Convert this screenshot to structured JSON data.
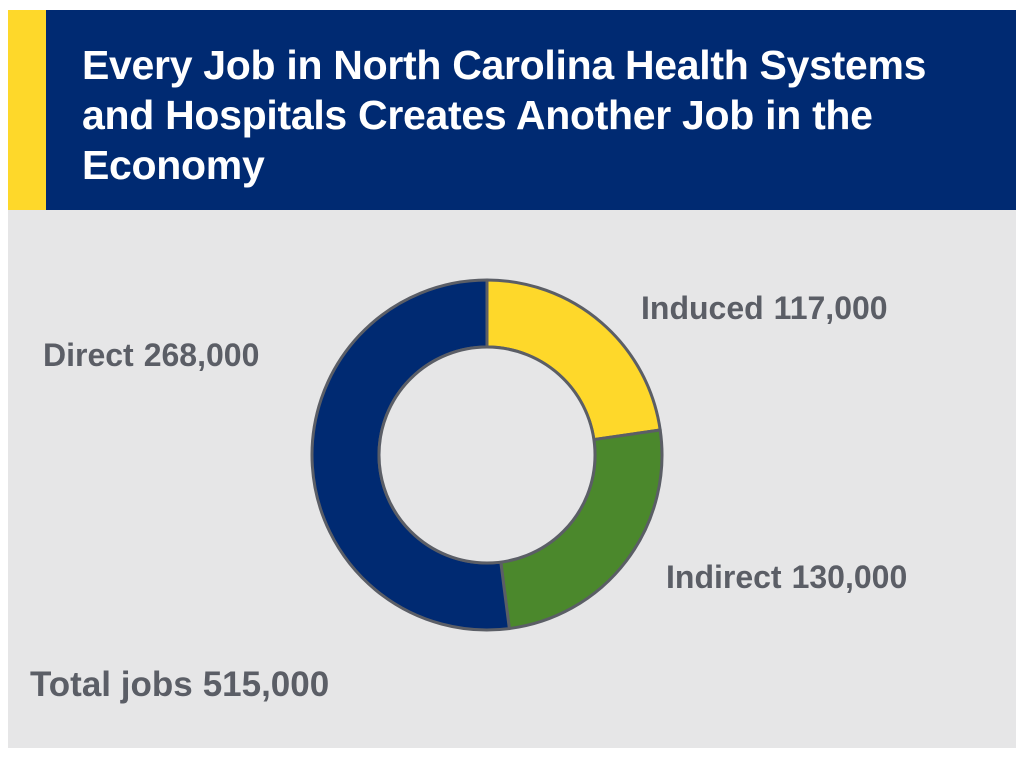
{
  "title": "Every Job in North Carolina Health Systems and Hospitals Creates Another Job in the Economy",
  "colors": {
    "header_bg": "#002a72",
    "accent": "#fed82a",
    "card_bg": "#e6e6e7",
    "label_text": "#5b5e66"
  },
  "chart_data": {
    "type": "pie",
    "variant": "donut",
    "slices": [
      {
        "name": "Induced",
        "value": 117000,
        "display": "117,000",
        "color": "#fed82a"
      },
      {
        "name": "Indirect",
        "value": 130000,
        "display": "130,000",
        "color": "#4b882c"
      },
      {
        "name": "Direct",
        "value": 268000,
        "display": "268,000",
        "color": "#002a72"
      }
    ],
    "total": {
      "label": "Total jobs",
      "value": 515000,
      "display": "515,000"
    },
    "center_color": "#e6e6e7",
    "outline_color": "#5b5e66"
  }
}
